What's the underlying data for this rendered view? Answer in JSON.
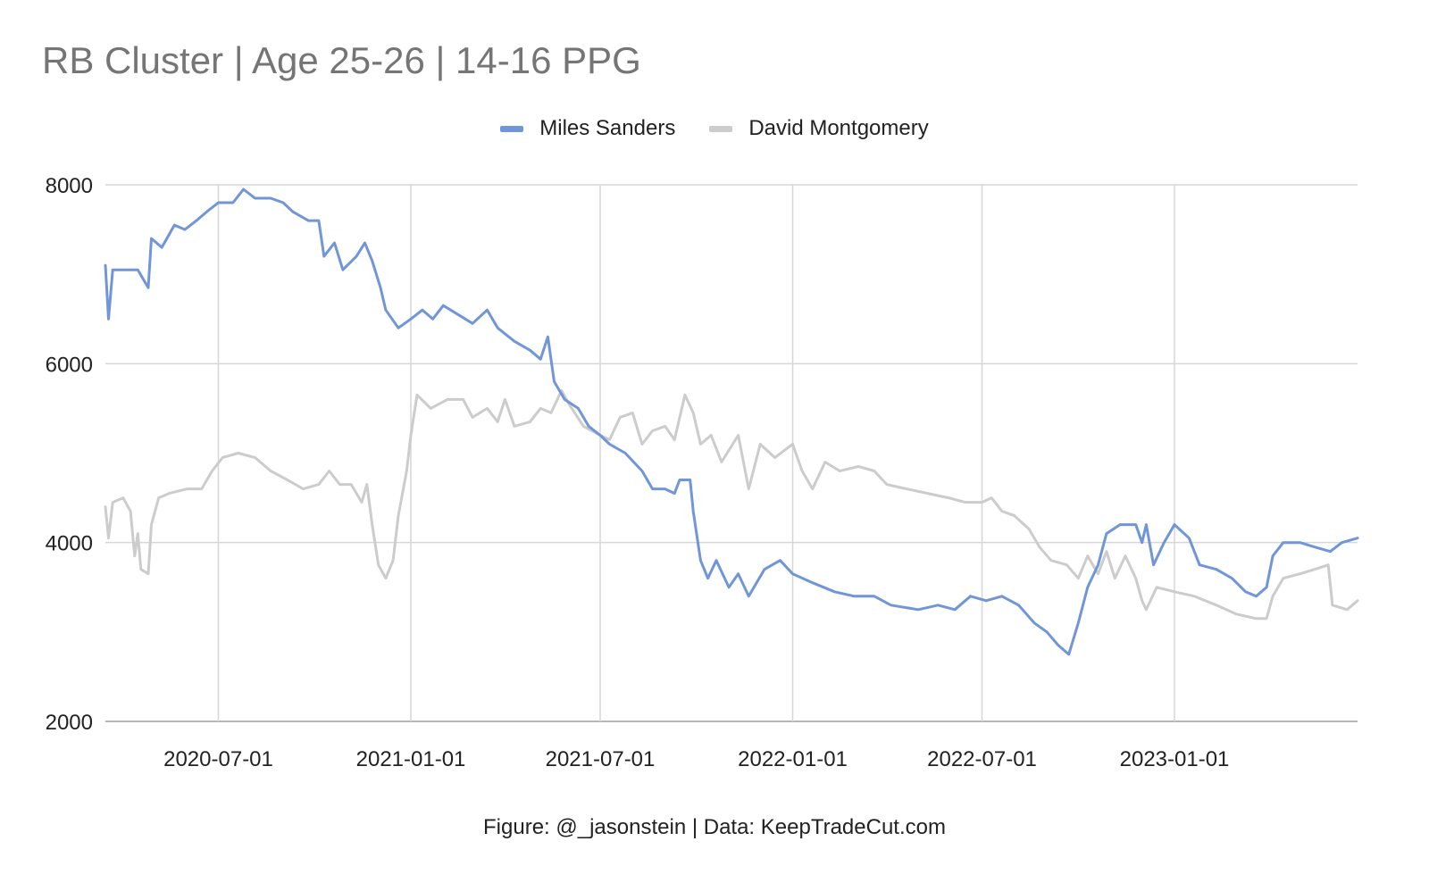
{
  "chart_data": {
    "type": "line",
    "title": "RB Cluster | Age 25-26 | 14-16 PPG",
    "xlabel": "",
    "ylabel": "",
    "caption": "Figure: @_jasonstein | Data: KeepTradeCut.com",
    "x_range": [
      "2020-03-15",
      "2023-06-25"
    ],
    "ylim": [
      2000,
      8000
    ],
    "y_ticks": [
      "2000",
      "4000",
      "6000",
      "8000"
    ],
    "x_ticks": [
      "2020-07-01",
      "2021-01-01",
      "2021-07-01",
      "2022-01-01",
      "2022-07-01",
      "2023-01-01"
    ],
    "grid": true,
    "legend_position": "top",
    "series": [
      {
        "name": "Miles Sanders",
        "color": "#7096d9",
        "points": [
          [
            "2020-03-15",
            7100
          ],
          [
            "2020-03-18",
            6500
          ],
          [
            "2020-03-22",
            7050
          ],
          [
            "2020-04-01",
            7050
          ],
          [
            "2020-04-15",
            7050
          ],
          [
            "2020-04-25",
            6850
          ],
          [
            "2020-04-28",
            7400
          ],
          [
            "2020-05-08",
            7300
          ],
          [
            "2020-05-20",
            7550
          ],
          [
            "2020-05-30",
            7500
          ],
          [
            "2020-06-10",
            7600
          ],
          [
            "2020-06-20",
            7700
          ],
          [
            "2020-07-01",
            7800
          ],
          [
            "2020-07-15",
            7800
          ],
          [
            "2020-07-25",
            7950
          ],
          [
            "2020-08-05",
            7850
          ],
          [
            "2020-08-20",
            7850
          ],
          [
            "2020-09-01",
            7800
          ],
          [
            "2020-09-10",
            7700
          ],
          [
            "2020-09-25",
            7600
          ],
          [
            "2020-10-05",
            7600
          ],
          [
            "2020-10-10",
            7200
          ],
          [
            "2020-10-20",
            7350
          ],
          [
            "2020-10-28",
            7050
          ],
          [
            "2020-11-10",
            7200
          ],
          [
            "2020-11-18",
            7350
          ],
          [
            "2020-11-25",
            7150
          ],
          [
            "2020-12-03",
            6850
          ],
          [
            "2020-12-08",
            6600
          ],
          [
            "2020-12-20",
            6400
          ],
          [
            "2021-01-01",
            6500
          ],
          [
            "2021-01-12",
            6600
          ],
          [
            "2021-01-22",
            6500
          ],
          [
            "2021-02-01",
            6650
          ],
          [
            "2021-02-15",
            6550
          ],
          [
            "2021-03-01",
            6450
          ],
          [
            "2021-03-15",
            6600
          ],
          [
            "2021-03-25",
            6400
          ],
          [
            "2021-04-10",
            6250
          ],
          [
            "2021-04-25",
            6150
          ],
          [
            "2021-05-05",
            6050
          ],
          [
            "2021-05-12",
            6300
          ],
          [
            "2021-05-18",
            5800
          ],
          [
            "2021-05-28",
            5600
          ],
          [
            "2021-06-10",
            5500
          ],
          [
            "2021-06-20",
            5300
          ],
          [
            "2021-07-01",
            5200
          ],
          [
            "2021-07-10",
            5100
          ],
          [
            "2021-07-25",
            5000
          ],
          [
            "2021-08-10",
            4800
          ],
          [
            "2021-08-20",
            4600
          ],
          [
            "2021-09-01",
            4600
          ],
          [
            "2021-09-10",
            4550
          ],
          [
            "2021-09-15",
            4700
          ],
          [
            "2021-09-25",
            4700
          ],
          [
            "2021-09-28",
            4350
          ],
          [
            "2021-10-05",
            3800
          ],
          [
            "2021-10-12",
            3600
          ],
          [
            "2021-10-20",
            3800
          ],
          [
            "2021-11-01",
            3500
          ],
          [
            "2021-11-10",
            3650
          ],
          [
            "2021-11-20",
            3400
          ],
          [
            "2021-12-05",
            3700
          ],
          [
            "2021-12-20",
            3800
          ],
          [
            "2022-01-01",
            3650
          ],
          [
            "2022-01-20",
            3550
          ],
          [
            "2022-02-10",
            3450
          ],
          [
            "2022-03-01",
            3400
          ],
          [
            "2022-03-20",
            3400
          ],
          [
            "2022-04-05",
            3300
          ],
          [
            "2022-05-01",
            3250
          ],
          [
            "2022-05-20",
            3300
          ],
          [
            "2022-06-05",
            3250
          ],
          [
            "2022-06-20",
            3400
          ],
          [
            "2022-07-05",
            3350
          ],
          [
            "2022-07-20",
            3400
          ],
          [
            "2022-08-05",
            3300
          ],
          [
            "2022-08-20",
            3100
          ],
          [
            "2022-09-01",
            3000
          ],
          [
            "2022-09-12",
            2850
          ],
          [
            "2022-09-22",
            2750
          ],
          [
            "2022-10-01",
            3100
          ],
          [
            "2022-10-10",
            3500
          ],
          [
            "2022-10-20",
            3750
          ],
          [
            "2022-10-28",
            4100
          ],
          [
            "2022-11-10",
            4200
          ],
          [
            "2022-11-25",
            4200
          ],
          [
            "2022-12-01",
            4000
          ],
          [
            "2022-12-05",
            4200
          ],
          [
            "2022-12-12",
            3750
          ],
          [
            "2022-12-22",
            4000
          ],
          [
            "2023-01-01",
            4200
          ],
          [
            "2023-01-15",
            4050
          ],
          [
            "2023-01-25",
            3750
          ],
          [
            "2023-02-10",
            3700
          ],
          [
            "2023-02-25",
            3600
          ],
          [
            "2023-03-10",
            3450
          ],
          [
            "2023-03-20",
            3400
          ],
          [
            "2023-03-30",
            3500
          ],
          [
            "2023-04-05",
            3850
          ],
          [
            "2023-04-15",
            4000
          ],
          [
            "2023-05-01",
            4000
          ],
          [
            "2023-05-15",
            3950
          ],
          [
            "2023-05-30",
            3900
          ],
          [
            "2023-06-10",
            4000
          ],
          [
            "2023-06-25",
            4050
          ]
        ]
      },
      {
        "name": "David Montgomery",
        "color": "#cccccc",
        "points": [
          [
            "2020-03-15",
            4400
          ],
          [
            "2020-03-18",
            4050
          ],
          [
            "2020-03-22",
            4450
          ],
          [
            "2020-04-01",
            4500
          ],
          [
            "2020-04-08",
            4350
          ],
          [
            "2020-04-12",
            3850
          ],
          [
            "2020-04-15",
            4100
          ],
          [
            "2020-04-18",
            3700
          ],
          [
            "2020-04-25",
            3650
          ],
          [
            "2020-04-28",
            4200
          ],
          [
            "2020-05-05",
            4500
          ],
          [
            "2020-05-15",
            4550
          ],
          [
            "2020-06-01",
            4600
          ],
          [
            "2020-06-15",
            4600
          ],
          [
            "2020-06-25",
            4800
          ],
          [
            "2020-07-05",
            4950
          ],
          [
            "2020-07-20",
            5000
          ],
          [
            "2020-08-05",
            4950
          ],
          [
            "2020-08-20",
            4800
          ],
          [
            "2020-09-05",
            4700
          ],
          [
            "2020-09-20",
            4600
          ],
          [
            "2020-10-05",
            4650
          ],
          [
            "2020-10-15",
            4800
          ],
          [
            "2020-10-25",
            4650
          ],
          [
            "2020-11-05",
            4650
          ],
          [
            "2020-11-15",
            4450
          ],
          [
            "2020-11-20",
            4650
          ],
          [
            "2020-11-25",
            4200
          ],
          [
            "2020-12-01",
            3750
          ],
          [
            "2020-12-08",
            3600
          ],
          [
            "2020-12-15",
            3800
          ],
          [
            "2020-12-20",
            4300
          ],
          [
            "2020-12-28",
            4800
          ],
          [
            "2021-01-01",
            5200
          ],
          [
            "2021-01-07",
            5650
          ],
          [
            "2021-01-20",
            5500
          ],
          [
            "2021-02-05",
            5600
          ],
          [
            "2021-02-20",
            5600
          ],
          [
            "2021-03-01",
            5400
          ],
          [
            "2021-03-15",
            5500
          ],
          [
            "2021-03-25",
            5350
          ],
          [
            "2021-04-01",
            5600
          ],
          [
            "2021-04-10",
            5300
          ],
          [
            "2021-04-25",
            5350
          ],
          [
            "2021-05-05",
            5500
          ],
          [
            "2021-05-15",
            5450
          ],
          [
            "2021-05-25",
            5700
          ],
          [
            "2021-06-01",
            5550
          ],
          [
            "2021-06-15",
            5300
          ],
          [
            "2021-07-01",
            5200
          ],
          [
            "2021-07-10",
            5150
          ],
          [
            "2021-07-20",
            5400
          ],
          [
            "2021-08-01",
            5450
          ],
          [
            "2021-08-10",
            5100
          ],
          [
            "2021-08-20",
            5250
          ],
          [
            "2021-09-01",
            5300
          ],
          [
            "2021-09-10",
            5150
          ],
          [
            "2021-09-20",
            5650
          ],
          [
            "2021-09-28",
            5450
          ],
          [
            "2021-10-05",
            5100
          ],
          [
            "2021-10-15",
            5200
          ],
          [
            "2021-10-25",
            4900
          ],
          [
            "2021-11-10",
            5200
          ],
          [
            "2021-11-20",
            4600
          ],
          [
            "2021-12-01",
            5100
          ],
          [
            "2021-12-15",
            4950
          ],
          [
            "2022-01-01",
            5100
          ],
          [
            "2022-01-10",
            4800
          ],
          [
            "2022-01-20",
            4600
          ],
          [
            "2022-02-01",
            4900
          ],
          [
            "2022-02-15",
            4800
          ],
          [
            "2022-03-05",
            4850
          ],
          [
            "2022-03-20",
            4800
          ],
          [
            "2022-04-01",
            4650
          ],
          [
            "2022-04-20",
            4600
          ],
          [
            "2022-05-10",
            4550
          ],
          [
            "2022-05-30",
            4500
          ],
          [
            "2022-06-15",
            4450
          ],
          [
            "2022-07-01",
            4450
          ],
          [
            "2022-07-10",
            4500
          ],
          [
            "2022-07-20",
            4350
          ],
          [
            "2022-08-01",
            4300
          ],
          [
            "2022-08-15",
            4150
          ],
          [
            "2022-08-25",
            3950
          ],
          [
            "2022-09-05",
            3800
          ],
          [
            "2022-09-20",
            3750
          ],
          [
            "2022-10-01",
            3600
          ],
          [
            "2022-10-10",
            3850
          ],
          [
            "2022-10-20",
            3650
          ],
          [
            "2022-10-28",
            3900
          ],
          [
            "2022-11-05",
            3600
          ],
          [
            "2022-11-15",
            3850
          ],
          [
            "2022-11-25",
            3600
          ],
          [
            "2022-12-01",
            3350
          ],
          [
            "2022-12-05",
            3250
          ],
          [
            "2022-12-15",
            3500
          ],
          [
            "2023-01-01",
            3450
          ],
          [
            "2023-01-20",
            3400
          ],
          [
            "2023-02-10",
            3300
          ],
          [
            "2023-03-01",
            3200
          ],
          [
            "2023-03-20",
            3150
          ],
          [
            "2023-03-30",
            3150
          ],
          [
            "2023-04-05",
            3400
          ],
          [
            "2023-04-15",
            3600
          ],
          [
            "2023-05-01",
            3650
          ],
          [
            "2023-05-15",
            3700
          ],
          [
            "2023-05-28",
            3750
          ],
          [
            "2023-06-01",
            3300
          ],
          [
            "2023-06-15",
            3250
          ],
          [
            "2023-06-25",
            3350
          ]
        ]
      }
    ]
  }
}
